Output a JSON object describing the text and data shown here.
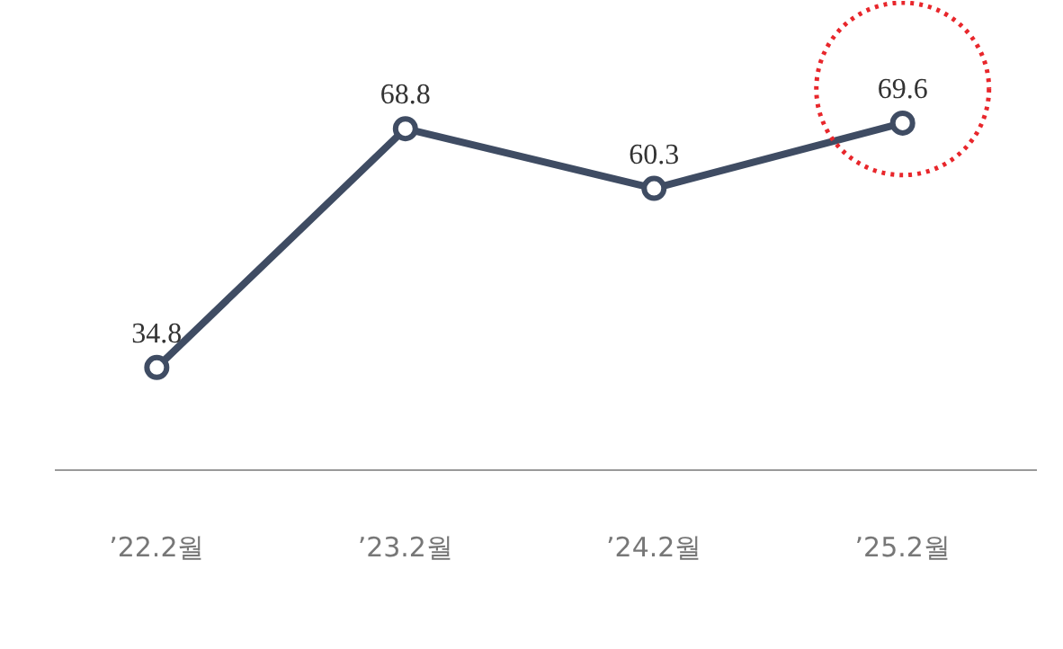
{
  "chart_data": {
    "type": "line",
    "categories": [
      "’22.2월",
      "’23.2월",
      "’24.2월",
      "’25.2월"
    ],
    "series": [
      {
        "color": "#3f4c63",
        "values": [
          34.8,
          68.8,
          60.3,
          69.6
        ]
      }
    ],
    "data_labels": true,
    "marker": "circle",
    "line_style": "solid"
  }
}
